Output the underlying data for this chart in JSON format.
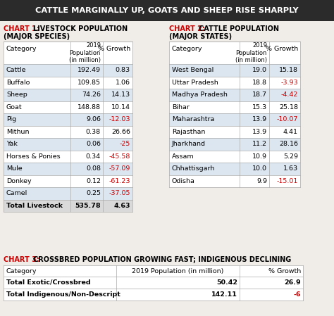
{
  "title": "CATTLE MARGINALLY UP, GOATS AND SHEEP RISE SHARPLY",
  "title_bg": "#2b2b2b",
  "title_color": "#ffffff",
  "chart_label_color": "#cc0000",
  "negative_color": "#cc0000",
  "positive_color": "#000000",
  "border_color": "#aaaaaa",
  "row_bg_odd": "#dce6f1",
  "row_bg_even": "#ffffff",
  "row_bg_total": "#d9d9d9",
  "bg_color": "#f0ede8",
  "chart1_data": [
    [
      "Cattle",
      "192.49",
      "0.83",
      false
    ],
    [
      "Buffalo",
      "109.85",
      "1.06",
      false
    ],
    [
      "Sheep",
      "74.26",
      "14.13",
      false
    ],
    [
      "Goat",
      "148.88",
      "10.14",
      false
    ],
    [
      "Pig",
      "9.06",
      "-12.03",
      true
    ],
    [
      "Mithun",
      "0.38",
      "26.66",
      false
    ],
    [
      "Yak",
      "0.06",
      "-25",
      true
    ],
    [
      "Horses & Ponies",
      "0.34",
      "-45.58",
      true
    ],
    [
      "Mule",
      "0.08",
      "-57.09",
      true
    ],
    [
      "Donkey",
      "0.12",
      "-61.23",
      true
    ],
    [
      "Camel",
      "0.25",
      "-37.05",
      true
    ],
    [
      "Total Livestock",
      "535.78",
      "4.63",
      false
    ]
  ],
  "chart2_data": [
    [
      "West Bengal",
      "19.0",
      "15.18",
      false
    ],
    [
      "Uttar Pradesh",
      "18.8",
      "-3.93",
      true
    ],
    [
      "Madhya Pradesh",
      "18.7",
      "-4.42",
      true
    ],
    [
      "Bihar",
      "15.3",
      "25.18",
      false
    ],
    [
      "Maharashtra",
      "13.9",
      "-10.07",
      true
    ],
    [
      "Rajasthan",
      "13.9",
      "4.41",
      false
    ],
    [
      "Jharkhand",
      "11.2",
      "28.16",
      false
    ],
    [
      "Assam",
      "10.9",
      "5.29",
      false
    ],
    [
      "Chhattisgarh",
      "10.0",
      "1.63",
      false
    ],
    [
      "Odisha",
      "9.9",
      "-15.01",
      true
    ]
  ],
  "chart3_data": [
    [
      "Total Exotic/Crossbred",
      "50.42",
      "26.9",
      false
    ],
    [
      "Total Indigenous/Non-Descript",
      "142.11",
      "-6",
      true
    ]
  ]
}
